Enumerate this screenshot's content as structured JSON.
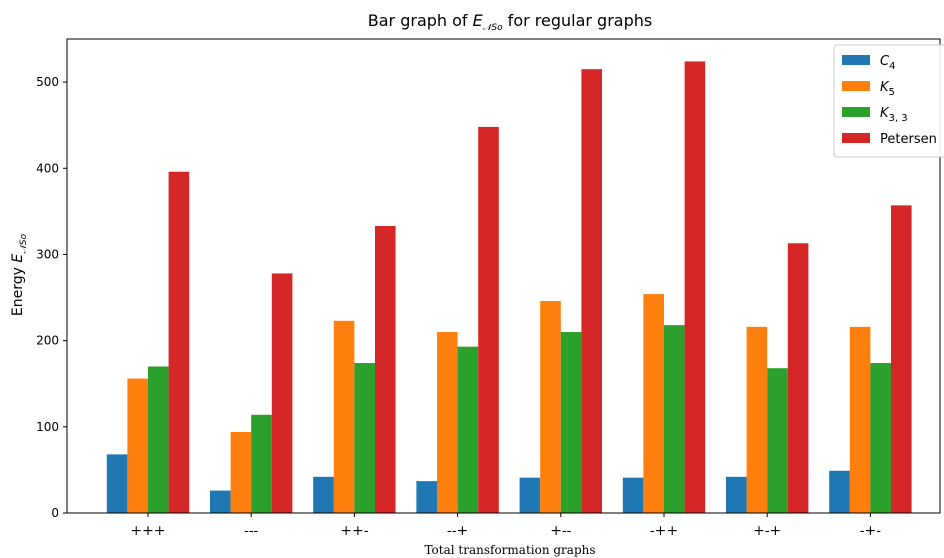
{
  "chart_data": {
    "type": "bar",
    "title_prefix": "Bar graph of ",
    "title_symbol": "E",
    "title_symbol_sub": "𝒩So",
    "title_suffix": " for regular graphs",
    "xlabel": "Total transformation graphs",
    "ylabel_prefix": "Energy ",
    "ylabel_symbol": "E",
    "ylabel_symbol_sub": "𝒩So",
    "categories": [
      "+++",
      "---",
      "++-",
      "--+",
      "+--",
      "-++",
      "+-+",
      "-+-"
    ],
    "ylim": [
      0,
      550
    ],
    "yticks": [
      0,
      100,
      200,
      300,
      400,
      500
    ],
    "grid": false,
    "legend_position": "top-right",
    "series": [
      {
        "name": "C",
        "name_sub": "4",
        "color": "#1f77b4",
        "values": [
          68,
          26,
          42,
          37,
          41,
          41,
          42,
          49
        ]
      },
      {
        "name": "K",
        "name_sub": "5",
        "color": "#ff7f0e",
        "values": [
          156,
          94,
          223,
          210,
          246,
          254,
          216,
          216
        ]
      },
      {
        "name": "K",
        "name_sub": "3, 3",
        "color": "#2ca02c",
        "values": [
          170,
          114,
          174,
          193,
          210,
          218,
          168,
          174
        ]
      },
      {
        "name": "Petersen",
        "name_sub": "",
        "color": "#d62728",
        "values": [
          396,
          278,
          333,
          448,
          515,
          524,
          313,
          357
        ]
      }
    ]
  }
}
